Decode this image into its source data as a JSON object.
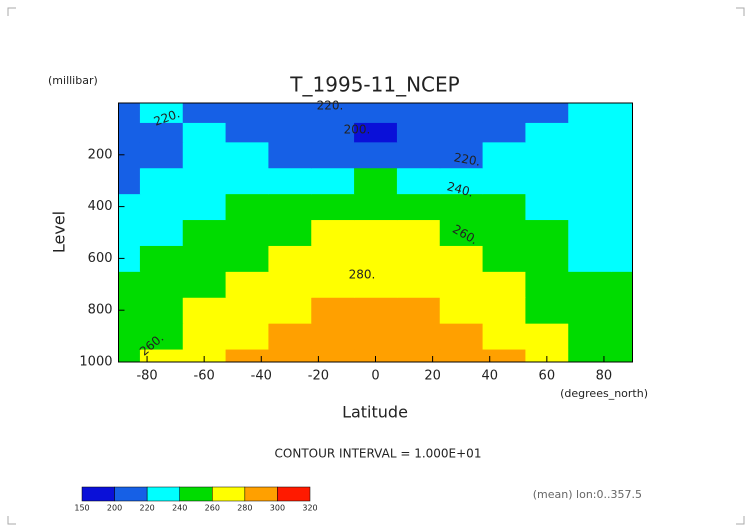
{
  "chart_data": {
    "type": "contour",
    "title": "T_1995-11_NCEP",
    "y_unit": "(millibar)",
    "y_label": "Level",
    "x_label": "Latitude",
    "x_unit": "(degrees_north)",
    "contour_note": "CONTOUR INTERVAL = 1.000E+01",
    "footer": "(mean) lon:0..357.5",
    "x": [
      -90,
      -75,
      -60,
      -45,
      -30,
      -15,
      0,
      15,
      30,
      45,
      60,
      75,
      90
    ],
    "levels": [
      1000,
      900,
      800,
      700,
      600,
      500,
      400,
      300,
      200,
      100,
      50
    ],
    "z": [
      [
        255,
        262,
        272,
        281,
        288,
        292,
        293,
        292,
        289,
        281,
        268,
        252,
        245
      ],
      [
        252,
        258,
        266,
        276,
        283,
        287,
        288,
        287,
        284,
        275,
        263,
        250,
        244
      ],
      [
        248,
        253,
        261,
        270,
        278,
        282,
        283,
        282,
        279,
        269,
        258,
        247,
        242
      ],
      [
        244,
        248,
        255,
        264,
        272,
        277,
        279,
        277,
        273,
        263,
        252,
        243,
        240
      ],
      [
        238,
        242,
        248,
        257,
        264,
        270,
        272,
        270,
        265,
        256,
        246,
        238,
        236
      ],
      [
        232,
        235,
        240,
        248,
        255,
        261,
        263,
        261,
        256,
        248,
        240,
        232,
        231
      ],
      [
        226,
        229,
        233,
        240,
        246,
        251,
        253,
        251,
        247,
        240,
        233,
        227,
        226
      ],
      [
        219,
        222,
        226,
        231,
        235,
        239,
        241,
        239,
        236,
        231,
        226,
        222,
        222
      ],
      [
        212,
        216,
        221,
        224,
        219,
        214,
        212,
        214,
        218,
        224,
        226,
        222,
        220
      ],
      [
        214,
        218,
        222,
        214,
        206,
        200,
        198,
        200,
        205,
        212,
        220,
        224,
        223
      ],
      [
        218,
        222,
        218,
        212,
        208,
        205,
        204,
        205,
        208,
        212,
        218,
        222,
        224
      ]
    ],
    "xlim": [
      -90,
      90
    ],
    "ylim": [
      1000,
      0
    ],
    "xticks": [
      -80,
      -60,
      -40,
      -20,
      0,
      20,
      40,
      60,
      80
    ],
    "yticks": [
      200,
      400,
      600,
      800,
      1000
    ],
    "contour_labels": [
      "220.",
      "200.",
      "220.",
      "220.",
      "240.",
      "260.",
      "280.",
      "260."
    ],
    "colorbar": {
      "bounds": [
        150,
        200,
        220,
        240,
        260,
        280,
        300,
        320
      ],
      "colors": [
        "#0a10d8",
        "#1660e6",
        "#00ffff",
        "#00dc00",
        "#ffff00",
        "#ffa000",
        "#ff1a00"
      ]
    }
  }
}
